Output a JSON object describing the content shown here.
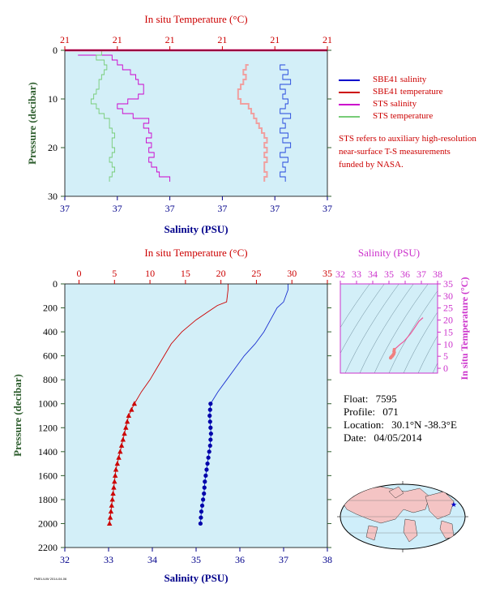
{
  "colors": {
    "panel_bg": "#d3eff8",
    "temperature": "#cc0000",
    "salinity": "#00008b",
    "sts_salinity": "#cc00cc",
    "sts_temperature": "#77cc77",
    "pressure_axis": "#2e5e2e",
    "ts_axis": "#cc33cc",
    "surface_line": "#ff0066"
  },
  "legend": [
    {
      "label": "SBE41 salinity",
      "color": "#0000cc"
    },
    {
      "label": "SBE41 temperature",
      "color": "#cc0000"
    },
    {
      "label": "STS salinity",
      "color": "#cc00cc"
    },
    {
      "label": "STS temperature",
      "color": "#77cc77"
    }
  ],
  "note": "STS refers to auxiliary high-resolution near-surface T-S measurements funded by NASA.",
  "float_info": {
    "float_label": "Float:",
    "float_value": "7595",
    "profile_label": "Profile:",
    "profile_value": "071",
    "location_label": "Location:",
    "location_value": "30.1°N  -38.3°E",
    "date_label": "Date:",
    "date_value": "04/05/2014"
  },
  "credit": "PMEL/UW 2014-04-06",
  "chart_data": [
    {
      "type": "line",
      "name": "near-surface profile",
      "top_axis_title": "In situ Temperature (°C)",
      "top_ticks": [
        "21",
        "21",
        "21",
        "21",
        "21",
        "21"
      ],
      "bottom_axis_title": "Salinity (PSU)",
      "bottom_ticks": [
        "37",
        "37",
        "37",
        "37",
        "37",
        "37"
      ],
      "ylabel": "Pressure (decibar)",
      "y_ticks": [
        0,
        10,
        20,
        30
      ],
      "ylim": [
        30,
        0
      ],
      "x_norm_range": [
        0,
        1
      ],
      "series": [
        {
          "name": "SBE41 salinity",
          "pressure": [
            3,
            4,
            5,
            6,
            7,
            8,
            9,
            10,
            11,
            12,
            13,
            14,
            15,
            16,
            17,
            18,
            19,
            20,
            21,
            22,
            23,
            24,
            25,
            26,
            27
          ],
          "values": [
            0.84,
            0.82,
            0.85,
            0.83,
            0.86,
            0.82,
            0.84,
            0.83,
            0.85,
            0.84,
            0.82,
            0.86,
            0.83,
            0.84,
            0.82,
            0.85,
            0.83,
            0.86,
            0.84,
            0.82,
            0.85,
            0.83,
            0.84,
            0.82,
            0.84
          ]
        },
        {
          "name": "SBE41 temperature",
          "pressure": [
            3,
            4,
            5,
            6,
            7,
            8,
            9,
            10,
            11,
            12,
            13,
            14,
            15,
            16,
            17,
            18,
            19,
            20,
            21,
            22,
            23,
            24,
            25,
            26,
            27
          ],
          "values": [
            0.7,
            0.69,
            0.68,
            0.69,
            0.68,
            0.67,
            0.66,
            0.66,
            0.67,
            0.7,
            0.71,
            0.72,
            0.73,
            0.74,
            0.75,
            0.76,
            0.77,
            0.76,
            0.77,
            0.76,
            0.77,
            0.76,
            0.76,
            0.77,
            0.76
          ]
        },
        {
          "name": "STS salinity",
          "pressure": [
            1,
            2,
            3,
            4,
            5,
            6,
            7,
            8,
            9,
            10,
            11,
            12,
            13,
            14,
            15,
            16,
            17,
            18,
            19,
            20,
            21,
            22,
            23,
            24,
            25,
            26,
            27
          ],
          "values": [
            0.05,
            0.18,
            0.2,
            0.22,
            0.25,
            0.27,
            0.28,
            0.3,
            0.3,
            0.28,
            0.24,
            0.2,
            0.22,
            0.26,
            0.32,
            0.3,
            0.32,
            0.33,
            0.31,
            0.33,
            0.32,
            0.34,
            0.32,
            0.33,
            0.35,
            0.36,
            0.4
          ]
        },
        {
          "name": "STS temperature",
          "pressure": [
            0,
            1,
            2,
            3,
            4,
            5,
            6,
            7,
            8,
            9,
            10,
            11,
            12,
            13,
            14,
            15,
            16,
            17,
            18,
            19,
            20,
            21,
            22,
            23,
            24,
            25,
            26,
            27
          ],
          "values": [
            0.24,
            0.14,
            0.12,
            0.15,
            0.16,
            0.15,
            0.14,
            0.13,
            0.13,
            0.12,
            0.11,
            0.1,
            0.12,
            0.13,
            0.15,
            0.17,
            0.17,
            0.18,
            0.19,
            0.18,
            0.18,
            0.19,
            0.18,
            0.17,
            0.18,
            0.19,
            0.18,
            0.17
          ]
        }
      ]
    },
    {
      "type": "line",
      "name": "full profile",
      "top_axis_title": "In situ Temperature (°C)",
      "temperature_ticks": [
        0,
        5,
        10,
        15,
        20,
        25,
        30,
        35
      ],
      "temperature_range": [
        -2,
        35
      ],
      "bottom_axis_title": "Salinity (PSU)",
      "salinity_ticks": [
        32,
        33,
        34,
        35,
        36,
        37,
        38
      ],
      "salinity_range": [
        32,
        38
      ],
      "ylabel": "Pressure (decibar)",
      "y_ticks": [
        0,
        200,
        400,
        600,
        800,
        1000,
        1200,
        1400,
        1600,
        1800,
        2000,
        2200
      ],
      "ylim": [
        2200,
        0
      ],
      "series": [
        {
          "name": "temperature",
          "pressure": [
            0,
            50,
            100,
            150,
            180,
            220,
            300,
            400,
            500,
            600,
            700,
            800,
            900,
            1000,
            1050,
            1100,
            1150,
            1200,
            1250,
            1300,
            1350,
            1400,
            1450,
            1500,
            1550,
            1600,
            1650,
            1700,
            1750,
            1800,
            1850,
            1900,
            1950,
            2000
          ],
          "values": [
            21.0,
            21.0,
            20.9,
            20.8,
            19.5,
            18.5,
            16.5,
            14.5,
            13.0,
            12.0,
            11.0,
            10.0,
            8.8,
            7.8,
            7.4,
            7.0,
            6.8,
            6.6,
            6.4,
            6.2,
            6.0,
            5.8,
            5.6,
            5.4,
            5.2,
            5.1,
            5.0,
            4.9,
            4.8,
            4.7,
            4.6,
            4.5,
            4.4,
            4.3
          ]
        },
        {
          "name": "salinity",
          "pressure": [
            0,
            50,
            100,
            150,
            200,
            300,
            400,
            500,
            600,
            700,
            800,
            900,
            1000,
            1050,
            1100,
            1150,
            1200,
            1250,
            1300,
            1350,
            1400,
            1450,
            1500,
            1550,
            1600,
            1650,
            1700,
            1750,
            1800,
            1850,
            1900,
            1950,
            2000
          ],
          "values": [
            37.1,
            37.1,
            37.05,
            37.0,
            36.85,
            36.7,
            36.55,
            36.35,
            36.1,
            35.9,
            35.7,
            35.5,
            35.33,
            35.32,
            35.31,
            35.32,
            35.33,
            35.34,
            35.33,
            35.32,
            35.3,
            35.28,
            35.26,
            35.24,
            35.22,
            35.2,
            35.19,
            35.18,
            35.16,
            35.14,
            35.12,
            35.11,
            35.1
          ]
        }
      ]
    },
    {
      "type": "scatter",
      "name": "T-S diagram",
      "top_axis_title": "Salinity (PSU)",
      "salinity_ticks": [
        32,
        33,
        34,
        35,
        36,
        37,
        38
      ],
      "salinity_range": [
        32,
        38
      ],
      "right_axis_title": "In situ Temperature (°C)",
      "temperature_ticks": [
        0,
        5,
        10,
        15,
        20,
        25,
        30,
        35
      ],
      "temperature_range": [
        -2,
        35
      ],
      "points": [
        [
          37.1,
          21.0
        ],
        [
          36.85,
          19.5
        ],
        [
          36.55,
          16.5
        ],
        [
          36.35,
          14.5
        ],
        [
          36.1,
          12.5
        ],
        [
          35.9,
          11.0
        ],
        [
          35.7,
          10.0
        ],
        [
          35.5,
          8.8
        ],
        [
          35.33,
          7.8
        ],
        [
          35.31,
          7.0
        ],
        [
          35.33,
          6.6
        ],
        [
          35.3,
          6.0
        ],
        [
          35.26,
          5.6
        ],
        [
          35.22,
          5.2
        ],
        [
          35.19,
          5.0
        ],
        [
          35.16,
          4.8
        ],
        [
          35.12,
          4.5
        ],
        [
          35.1,
          4.3
        ]
      ]
    }
  ]
}
